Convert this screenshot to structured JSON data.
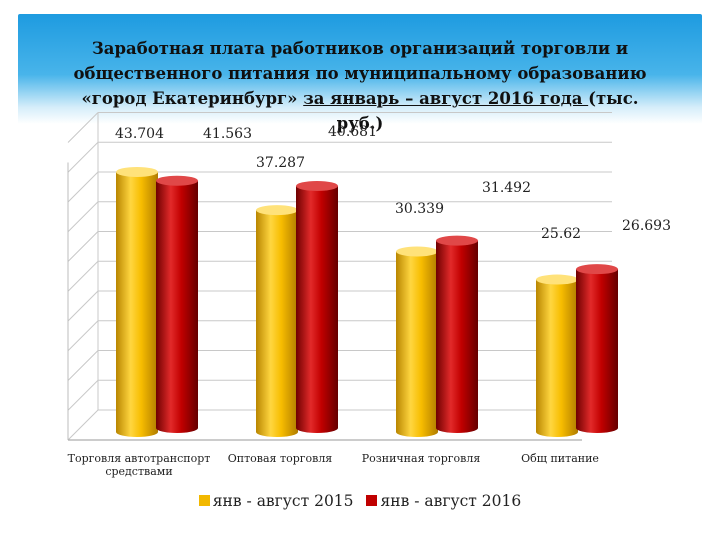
{
  "title": {
    "line1": "Заработная плата работников организаций торговли и",
    "line2": "общественного питания по муниципальному образованию",
    "line3_pre": "«город Екатеринбург» ",
    "line3_ul": "за январь – август 2016 года ",
    "line3_post": "(тыс. руб.)"
  },
  "colors": {
    "series_2015": "#f2b800",
    "series_2016": "#c00000"
  },
  "chart_data": {
    "type": "bar",
    "categories": [
      "Торговля автотранспорт средствами",
      "Оптовая торговля",
      "Розничная торговля",
      "Общ питание"
    ],
    "series": [
      {
        "name": "янв - август 2015",
        "values": [
          43.704,
          37.287,
          30.339,
          25.62
        ],
        "labels": [
          "43.704",
          "37.287",
          "30.339",
          "25.62"
        ]
      },
      {
        "name": "янв - август 2016",
        "values": [
          41.563,
          40.681,
          31.492,
          26.693
        ],
        "labels": [
          "41.563",
          "40.681",
          "31.492",
          "26.693"
        ]
      }
    ],
    "ylim": [
      0,
      50
    ],
    "grid": true,
    "legend": "bottom"
  }
}
